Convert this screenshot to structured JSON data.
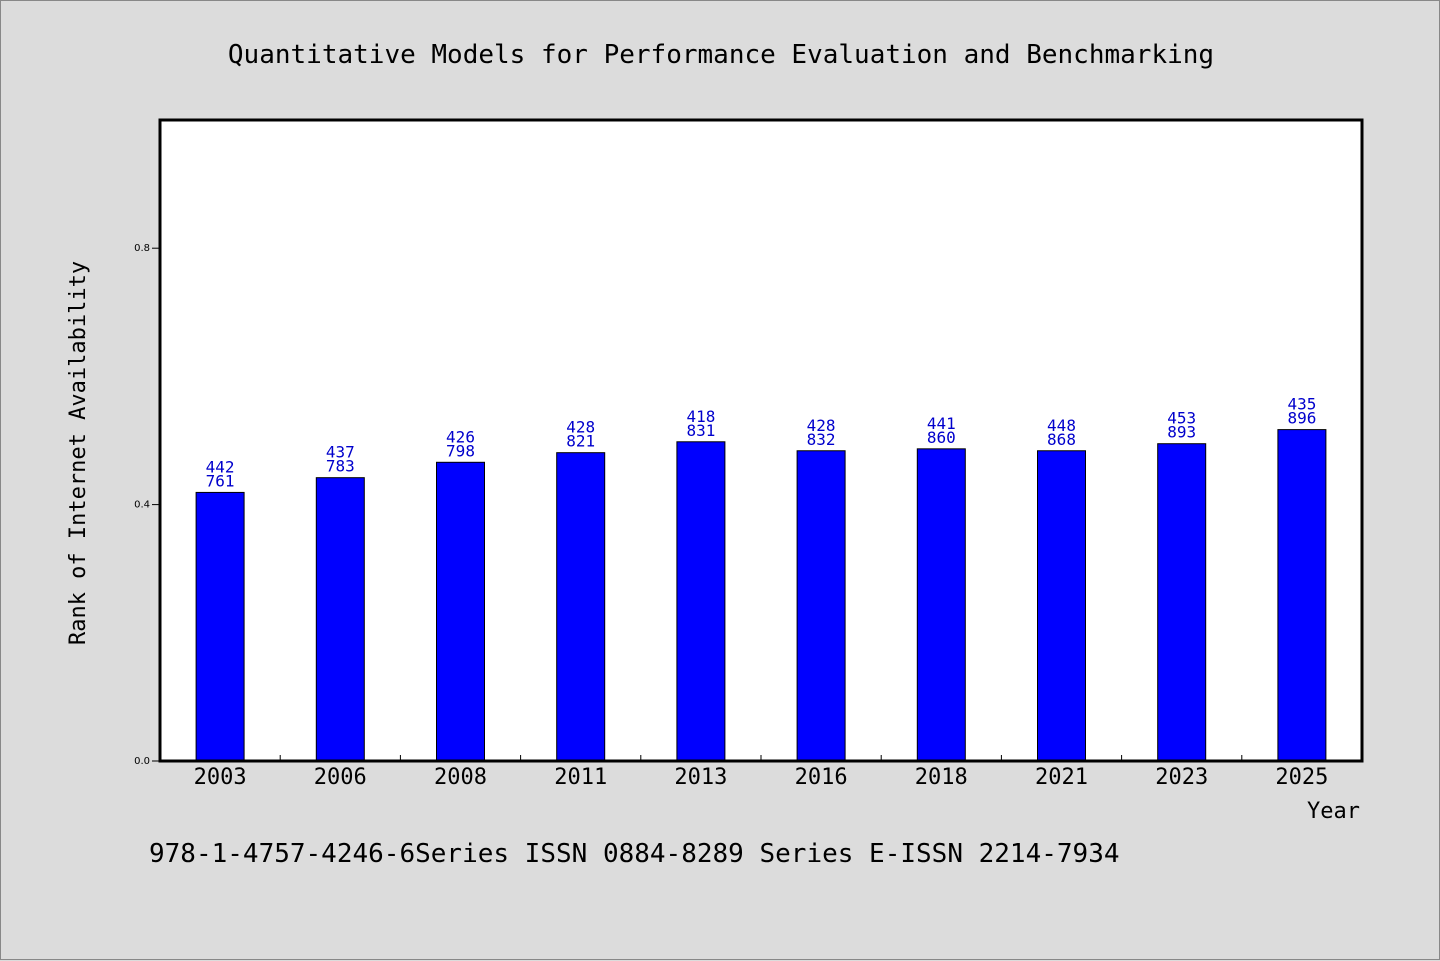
{
  "chart_data": {
    "type": "bar",
    "title": "Quantitative Models for Performance Evaluation and Benchmarking",
    "xlabel": "Year",
    "ylabel": "Rank of Internet Availability",
    "categories": [
      "2003",
      "2006",
      "2008",
      "2011",
      "2013",
      "2016",
      "2018",
      "2021",
      "2023",
      "2025"
    ],
    "values": [
      0.419,
      0.442,
      0.466,
      0.481,
      0.498,
      0.484,
      0.487,
      0.484,
      0.495,
      0.517
    ],
    "labels_top": [
      "442",
      "437",
      "426",
      "428",
      "418",
      "428",
      "441",
      "448",
      "453",
      "435"
    ],
    "labels_bottom": [
      "761",
      "783",
      "798",
      "821",
      "831",
      "832",
      "860",
      "868",
      "893",
      "896"
    ],
    "yticks": [
      "0.0",
      "0.4",
      "0.8"
    ],
    "ytick_values": [
      0.0,
      0.4,
      0.8
    ],
    "ylim": [
      0,
      1.0
    ],
    "grid": false,
    "legend": "none",
    "bar_color": "#0000ff",
    "label_color": "#0000cc"
  },
  "footer": {
    "text": "978-1-4757-4246-6Series ISSN 0884-8289 Series E-ISSN 2214-7934"
  },
  "colors": {
    "background": "#dcdcdc",
    "plot_background": "#ffffff"
  }
}
